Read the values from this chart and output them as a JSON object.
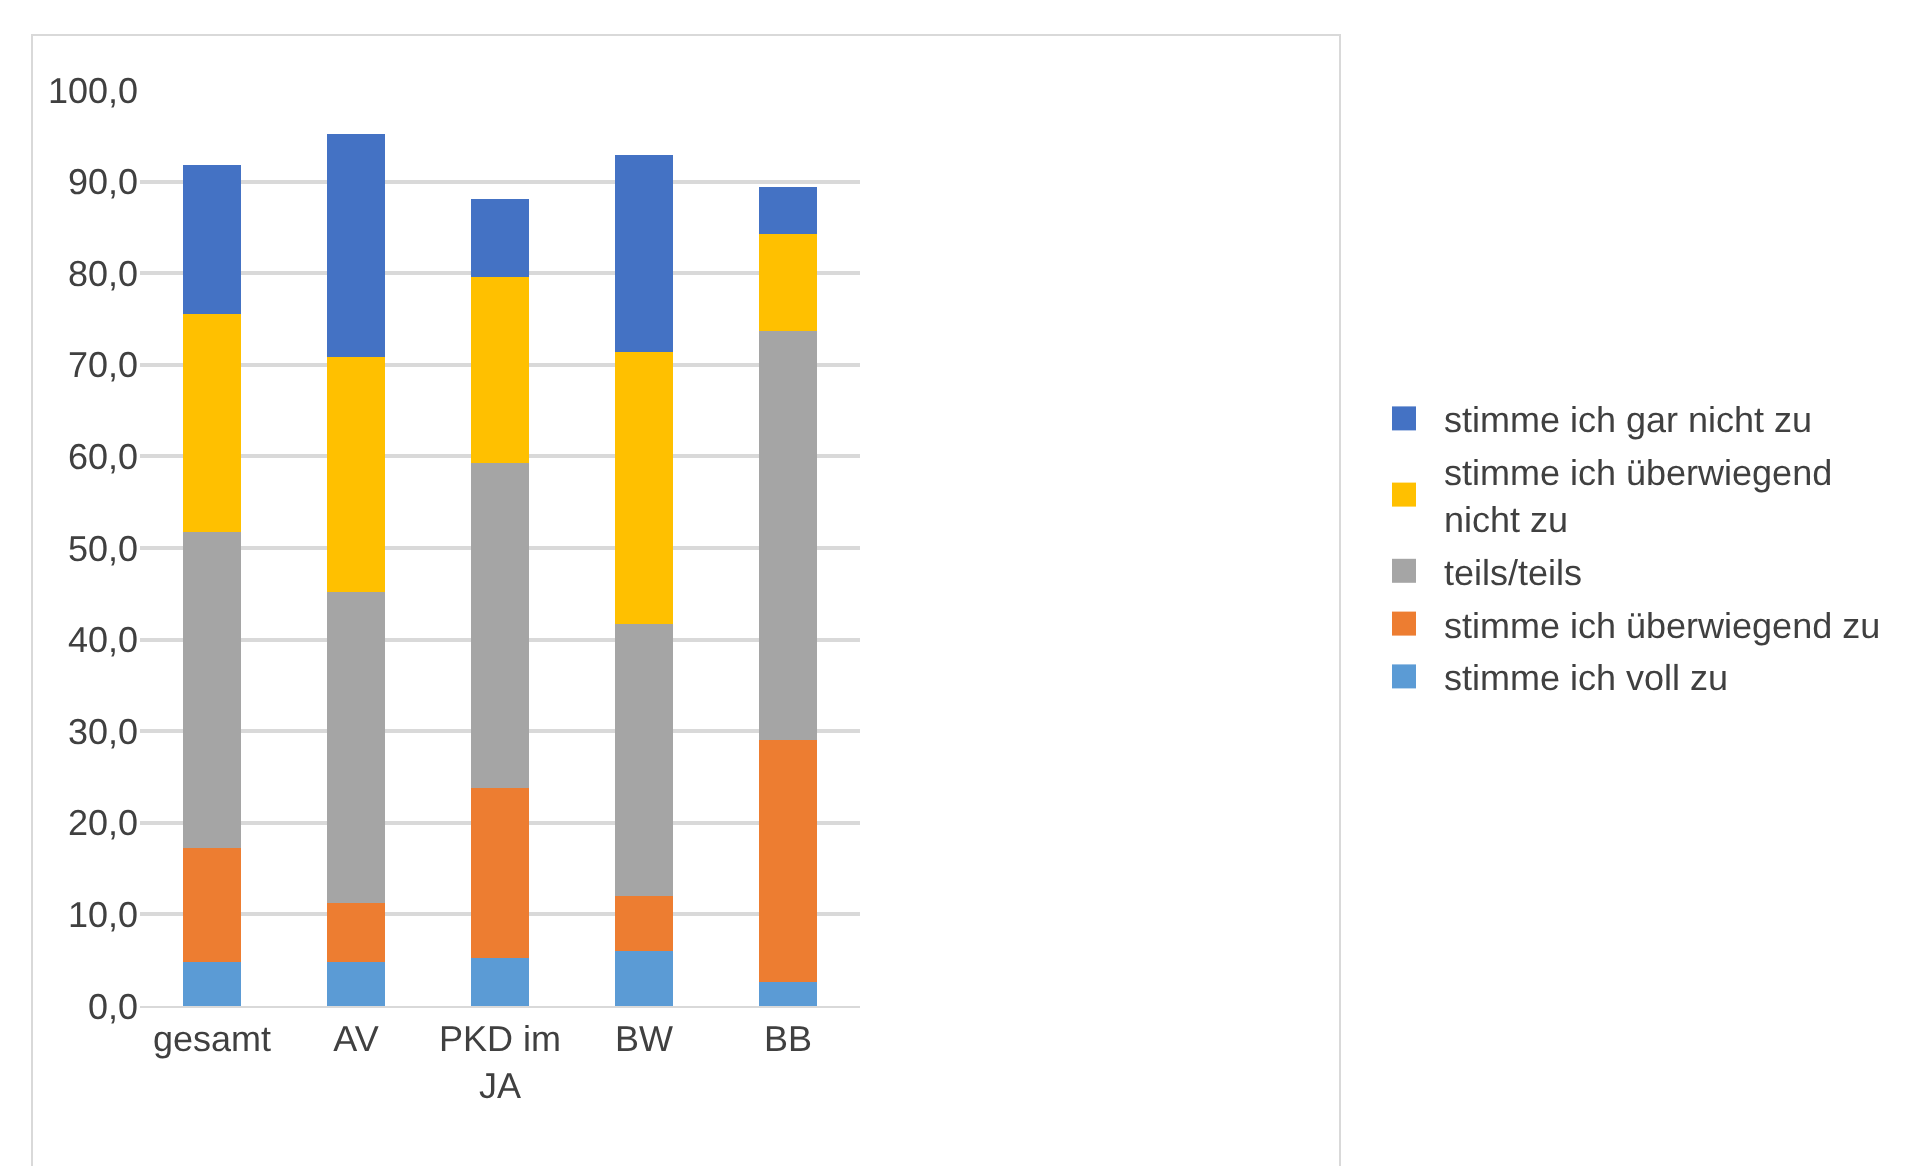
{
  "chart_data": {
    "type": "bar",
    "stacked": true,
    "categories": [
      "gesamt",
      "AV",
      "PKD im JA",
      "BW",
      "BB"
    ],
    "series": [
      {
        "name": "stimme ich voll zu",
        "color": "#5b9bd5",
        "values": [
          4.8,
          4.8,
          5.2,
          6.0,
          2.6
        ]
      },
      {
        "name": "stimme ich überwiegend zu",
        "color": "#ed7d31",
        "values": [
          12.5,
          6.4,
          18.6,
          6.0,
          26.4
        ]
      },
      {
        "name": "teils/teils",
        "color": "#a5a5a5",
        "values": [
          34.4,
          34.0,
          35.5,
          29.7,
          44.7
        ]
      },
      {
        "name": "stimme ich überwiegend nicht zu",
        "color": "#ffc000",
        "values": [
          23.8,
          25.7,
          20.3,
          29.7,
          10.6
        ]
      },
      {
        "name": "stimme ich gar nicht zu",
        "color": "#4472c4",
        "values": [
          16.3,
          24.3,
          8.5,
          21.5,
          5.1
        ]
      }
    ],
    "ylim": [
      0,
      100
    ],
    "yticks": [
      {
        "value": 0,
        "label": "0,0"
      },
      {
        "value": 10,
        "label": "10,0"
      },
      {
        "value": 20,
        "label": "20,0"
      },
      {
        "value": 30,
        "label": "30,0"
      },
      {
        "value": 40,
        "label": "40,0"
      },
      {
        "value": 50,
        "label": "50,0"
      },
      {
        "value": 60,
        "label": "60,0"
      },
      {
        "value": 70,
        "label": "70,0"
      },
      {
        "value": 80,
        "label": "80,0"
      },
      {
        "value": 90,
        "label": "90,0"
      },
      {
        "value": 100,
        "label": "100,0"
      }
    ],
    "grid": "y",
    "legend": "right"
  }
}
